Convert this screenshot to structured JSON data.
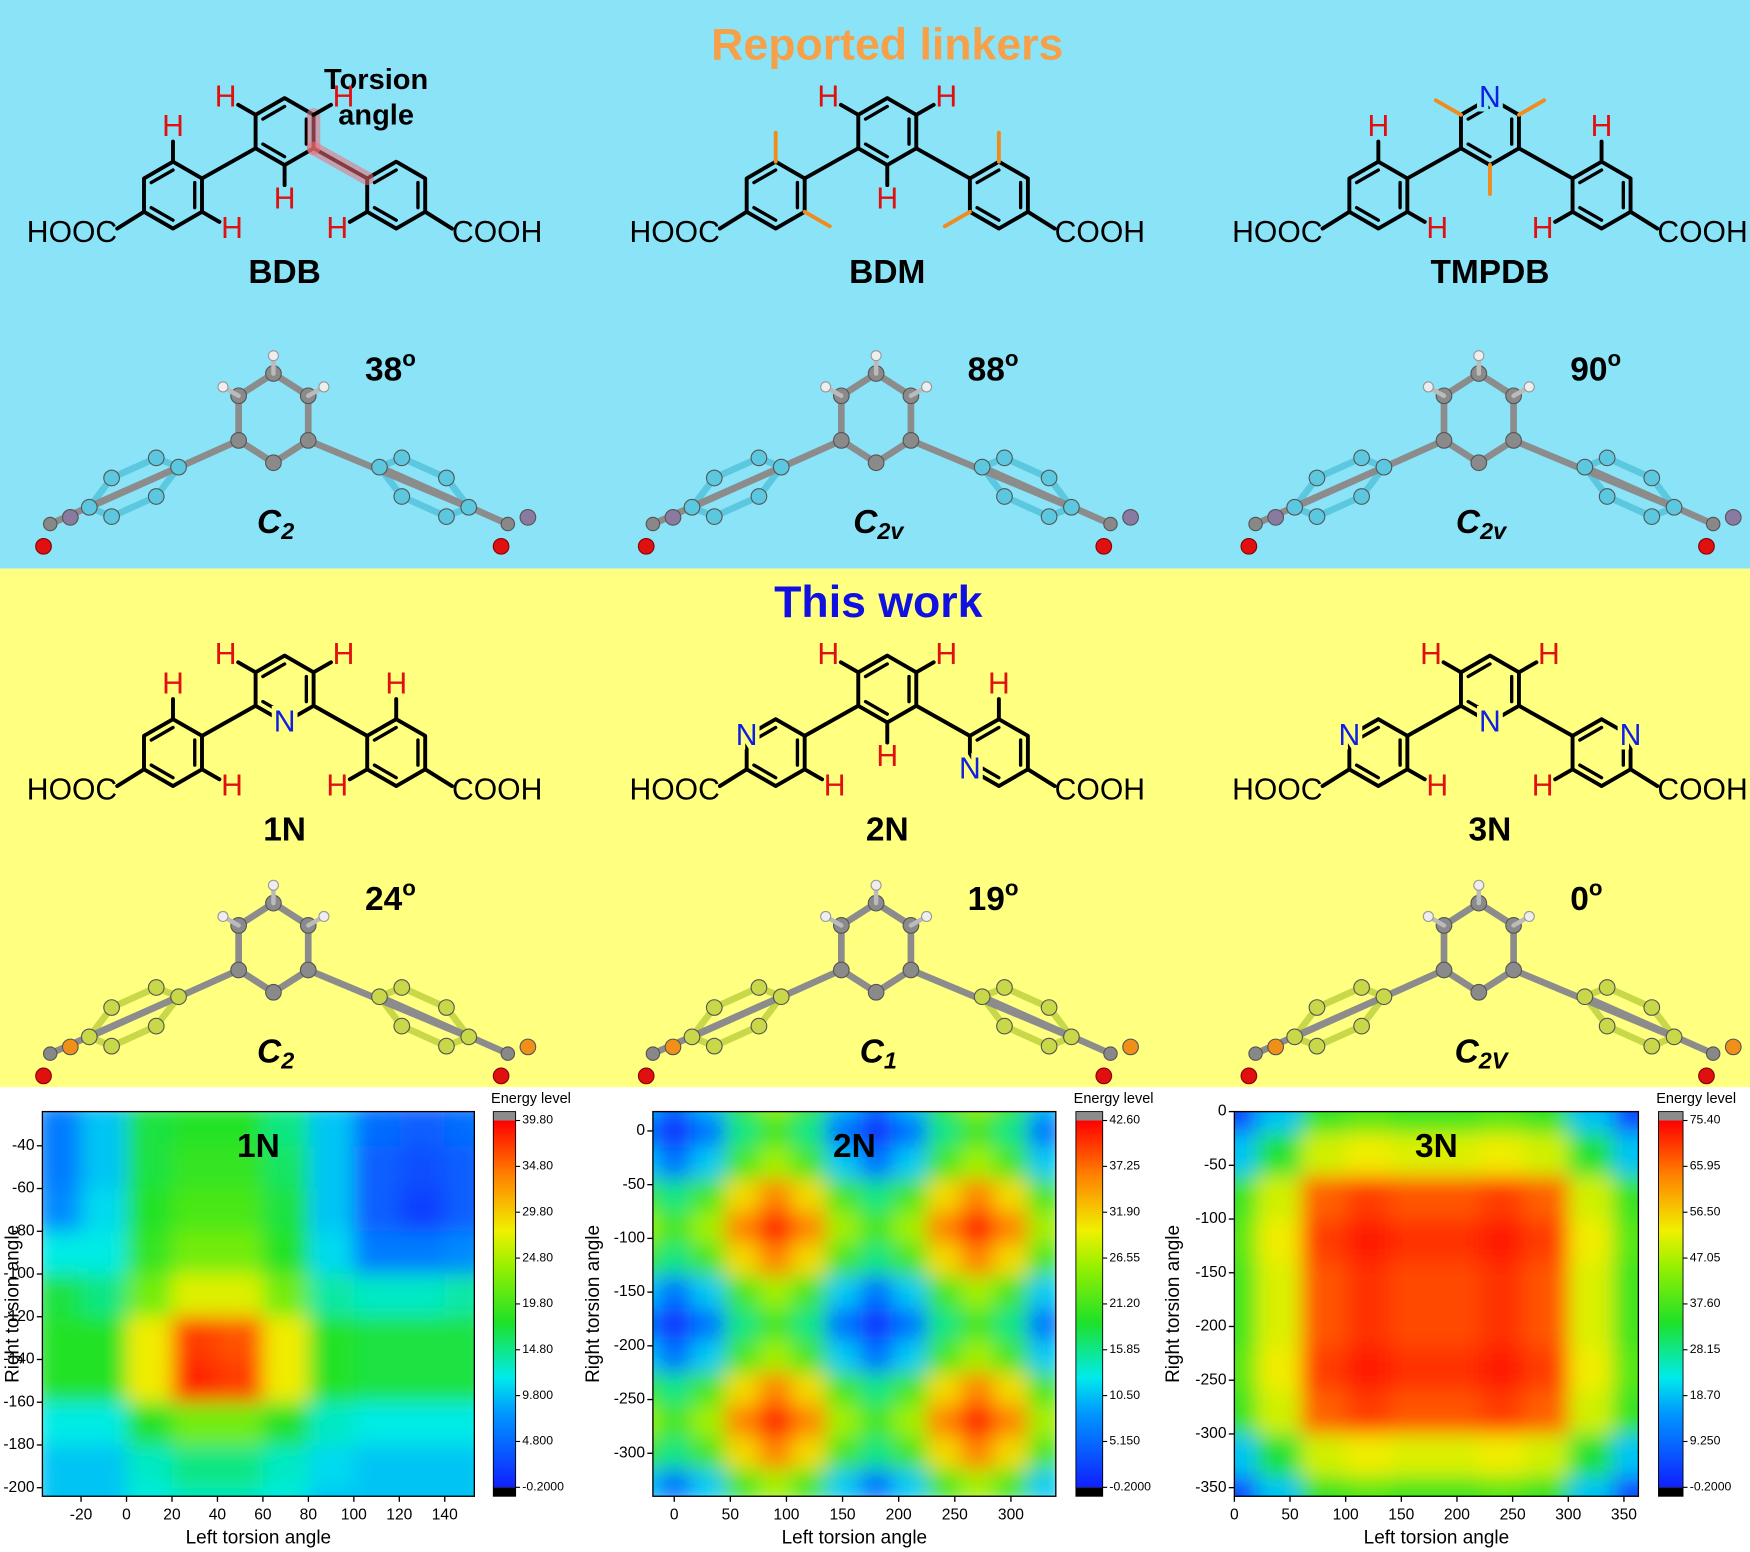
{
  "sections": [
    {
      "title": "Reported linkers",
      "molecules": [
        {
          "name": "BDB",
          "left_group": "HOOC",
          "right_group": "COOH",
          "atoms": [
            "H",
            "H",
            "H",
            "H",
            "H",
            "H"
          ],
          "angle": 38,
          "angle_unit": "o",
          "point_group": "C",
          "point_group_sub": "2"
        },
        {
          "name": "BDM",
          "left_group": "HOOC",
          "right_group": "COOH",
          "atoms": [
            "H",
            "H",
            "H"
          ],
          "angle": 88,
          "angle_unit": "o",
          "point_group": "C",
          "point_group_sub": "2v"
        },
        {
          "name": "TMPDB",
          "left_group": "HOOC",
          "right_group": "COOH",
          "atoms": [
            "H",
            "H",
            "H",
            "H",
            "N"
          ],
          "angle": 90,
          "angle_unit": "o",
          "point_group": "C",
          "point_group_sub": "2v"
        }
      ]
    },
    {
      "title": "This work",
      "molecules": [
        {
          "name": "1N",
          "left_group": "HOOC",
          "right_group": "COOH",
          "atoms": [
            "H",
            "H",
            "H",
            "H",
            "H",
            "H",
            "N"
          ],
          "angle": 24,
          "angle_unit": "o",
          "point_group": "C",
          "point_group_sub": "2"
        },
        {
          "name": "2N",
          "left_group": "HOOC",
          "right_group": "COOH",
          "atoms": [
            "H",
            "H",
            "H",
            "H",
            "H",
            "N",
            "N"
          ],
          "angle": 19,
          "angle_unit": "o",
          "point_group": "C",
          "point_group_sub": "1"
        },
        {
          "name": "3N",
          "left_group": "HOOC",
          "right_group": "COOH",
          "atoms": [
            "H",
            "H",
            "H",
            "H",
            "N",
            "N",
            "N"
          ],
          "angle": 0,
          "angle_unit": "o",
          "point_group": "C",
          "point_group_sub": "2V"
        }
      ]
    }
  ],
  "annotation": [
    "Torsion",
    "angle"
  ],
  "chart_data": [
    {
      "type": "heatmap",
      "title": "1N",
      "xlabel": "Left torsion angle",
      "ylabel": "Right torsion angle",
      "colorbar_label": "Energy level",
      "x": [
        -30,
        -10,
        10,
        30,
        50,
        70,
        90,
        110,
        130,
        150
      ],
      "y": [
        -30,
        -50,
        -70,
        -90,
        -110,
        -130,
        -150,
        -170,
        -190,
        -210
      ],
      "z": [
        [
          6,
          10,
          17,
          18,
          18,
          15,
          10,
          5,
          4,
          5
        ],
        [
          6,
          10,
          17,
          19,
          19,
          16,
          10,
          4,
          3,
          4
        ],
        [
          7,
          11,
          18,
          20,
          20,
          17,
          10,
          4,
          2,
          4
        ],
        [
          12,
          12,
          19,
          22,
          22,
          18,
          11,
          6,
          6,
          7
        ],
        [
          17,
          15,
          22,
          27,
          27,
          22,
          14,
          13,
          13,
          14
        ],
        [
          18,
          18,
          28,
          37,
          36,
          28,
          18,
          17,
          17,
          17
        ],
        [
          18,
          18,
          28,
          38,
          37,
          28,
          18,
          17,
          17,
          17
        ],
        [
          12,
          12,
          18,
          22,
          22,
          18,
          13,
          12,
          12,
          12
        ],
        [
          10,
          10,
          13,
          15,
          15,
          13,
          11,
          10,
          10,
          10
        ],
        [
          10,
          10,
          12,
          13,
          13,
          12,
          10,
          10,
          10,
          10
        ]
      ],
      "xlim": [
        -37,
        153
      ],
      "ylim": [
        -204,
        -24
      ],
      "xticks": [
        -20,
        0,
        20,
        40,
        60,
        80,
        100,
        120,
        140
      ],
      "yticks": [
        -40,
        -60,
        -80,
        -100,
        -120,
        -140,
        -160,
        -180,
        -200
      ],
      "clim": [
        -0.2,
        39.8
      ],
      "cticks": [
        {
          "value": -0.2,
          "label": "-0.2000"
        },
        {
          "value": 4.8,
          "label": "4.800"
        },
        {
          "value": 9.8,
          "label": "9.800"
        },
        {
          "value": 14.8,
          "label": "14.80"
        },
        {
          "value": 19.8,
          "label": "19.80"
        },
        {
          "value": 24.8,
          "label": "24.80"
        },
        {
          "value": 29.8,
          "label": "29.80"
        },
        {
          "value": 34.8,
          "label": "34.80"
        },
        {
          "value": 39.8,
          "label": "39.80"
        }
      ]
    },
    {
      "type": "heatmap",
      "title": "2N",
      "xlabel": "Left torsion angle",
      "ylabel": "Right torsion angle",
      "colorbar_label": "Energy level",
      "x": [
        -30,
        0,
        30,
        60,
        90,
        120,
        150,
        180,
        210,
        240,
        270,
        300,
        330
      ],
      "y": [
        30,
        0,
        -30,
        -60,
        -90,
        -120,
        -150,
        -180,
        -210,
        -240,
        -270,
        -300,
        -330
      ],
      "z": [
        [
          11,
          6,
          11,
          21,
          26,
          21,
          11,
          6,
          11,
          21,
          26,
          21,
          11
        ],
        [
          6,
          1,
          6,
          16,
          21,
          16,
          6,
          1,
          6,
          16,
          21,
          16,
          6
        ],
        [
          11,
          6,
          11,
          21,
          26,
          21,
          11,
          6,
          11,
          21,
          26,
          21,
          11
        ],
        [
          21,
          16,
          21,
          31,
          36,
          31,
          21,
          16,
          21,
          31,
          36,
          31,
          21
        ],
        [
          26,
          21,
          26,
          36,
          41,
          36,
          26,
          21,
          26,
          36,
          41,
          36,
          26
        ],
        [
          21,
          16,
          21,
          31,
          36,
          31,
          21,
          16,
          21,
          31,
          36,
          31,
          21
        ],
        [
          11,
          6,
          11,
          21,
          26,
          21,
          11,
          6,
          11,
          21,
          26,
          21,
          11
        ],
        [
          6,
          1,
          6,
          16,
          21,
          16,
          6,
          1,
          6,
          16,
          21,
          16,
          6
        ],
        [
          11,
          6,
          11,
          21,
          26,
          21,
          11,
          6,
          11,
          21,
          26,
          21,
          11
        ],
        [
          21,
          16,
          21,
          31,
          36,
          31,
          21,
          16,
          21,
          31,
          36,
          31,
          21
        ],
        [
          26,
          21,
          26,
          36,
          41,
          36,
          26,
          21,
          26,
          36,
          41,
          36,
          26
        ],
        [
          21,
          16,
          21,
          31,
          36,
          31,
          21,
          16,
          21,
          31,
          36,
          31,
          21
        ],
        [
          11,
          6,
          11,
          21,
          26,
          21,
          11,
          6,
          11,
          21,
          26,
          21,
          11
        ]
      ],
      "xlim": [
        -19,
        340
      ],
      "ylim": [
        -340,
        18
      ],
      "xticks": [
        0,
        50,
        100,
        150,
        200,
        250,
        300
      ],
      "yticks": [
        0,
        -50,
        -100,
        -150,
        -200,
        -250,
        -300
      ],
      "clim": [
        -0.2,
        42.6
      ],
      "cticks": [
        {
          "value": -0.2,
          "label": "-0.2000"
        },
        {
          "value": 5.15,
          "label": "5.150"
        },
        {
          "value": 10.5,
          "label": "10.50"
        },
        {
          "value": 15.85,
          "label": "15.85"
        },
        {
          "value": 21.2,
          "label": "21.20"
        },
        {
          "value": 26.55,
          "label": "26.55"
        },
        {
          "value": 31.9,
          "label": "31.90"
        },
        {
          "value": 37.25,
          "label": "37.25"
        },
        {
          "value": 42.6,
          "label": "42.60"
        }
      ]
    },
    {
      "type": "heatmap",
      "title": "3N",
      "xlabel": "Left torsion angle",
      "ylabel": "Right torsion angle",
      "colorbar_label": "Energy level",
      "x": [
        0,
        40,
        80,
        120,
        160,
        200,
        240,
        280,
        320,
        360
      ],
      "y": [
        0,
        -40,
        -80,
        -120,
        -160,
        -200,
        -240,
        -280,
        -320,
        -360
      ],
      "z": [
        [
          5,
          19,
          36,
          39,
          37,
          37,
          39,
          36,
          19,
          5
        ],
        [
          19,
          33,
          50,
          53,
          51,
          51,
          53,
          50,
          33,
          19
        ],
        [
          36,
          50,
          67,
          70,
          68,
          68,
          70,
          67,
          50,
          36
        ],
        [
          39,
          53,
          70,
          73,
          71,
          71,
          73,
          70,
          53,
          39
        ],
        [
          37,
          51,
          68,
          71,
          69,
          69,
          71,
          68,
          51,
          37
        ],
        [
          37,
          51,
          68,
          71,
          69,
          69,
          71,
          68,
          51,
          37
        ],
        [
          39,
          53,
          70,
          73,
          71,
          71,
          73,
          70,
          53,
          39
        ],
        [
          36,
          50,
          67,
          70,
          68,
          68,
          70,
          67,
          50,
          36
        ],
        [
          19,
          33,
          50,
          53,
          51,
          51,
          53,
          50,
          33,
          19
        ],
        [
          5,
          19,
          36,
          39,
          37,
          37,
          39,
          36,
          19,
          5
        ]
      ],
      "xlim": [
        0,
        363
      ],
      "ylim": [
        -358,
        0
      ],
      "xticks": [
        0,
        50,
        100,
        150,
        200,
        250,
        300,
        350
      ],
      "yticks": [
        0,
        -50,
        -100,
        -150,
        -200,
        -250,
        -300,
        -350
      ],
      "clim": [
        -0.2,
        75.4
      ],
      "cticks": [
        {
          "value": -0.2,
          "label": "-0.2000"
        },
        {
          "value": 9.25,
          "label": "9.250"
        },
        {
          "value": 18.7,
          "label": "18.70"
        },
        {
          "value": 28.15,
          "label": "28.15"
        },
        {
          "value": 37.6,
          "label": "37.60"
        },
        {
          "value": 47.05,
          "label": "47.05"
        },
        {
          "value": 56.5,
          "label": "56.50"
        },
        {
          "value": 65.95,
          "label": "65.95"
        },
        {
          "value": 75.4,
          "label": "75.40"
        }
      ]
    }
  ]
}
